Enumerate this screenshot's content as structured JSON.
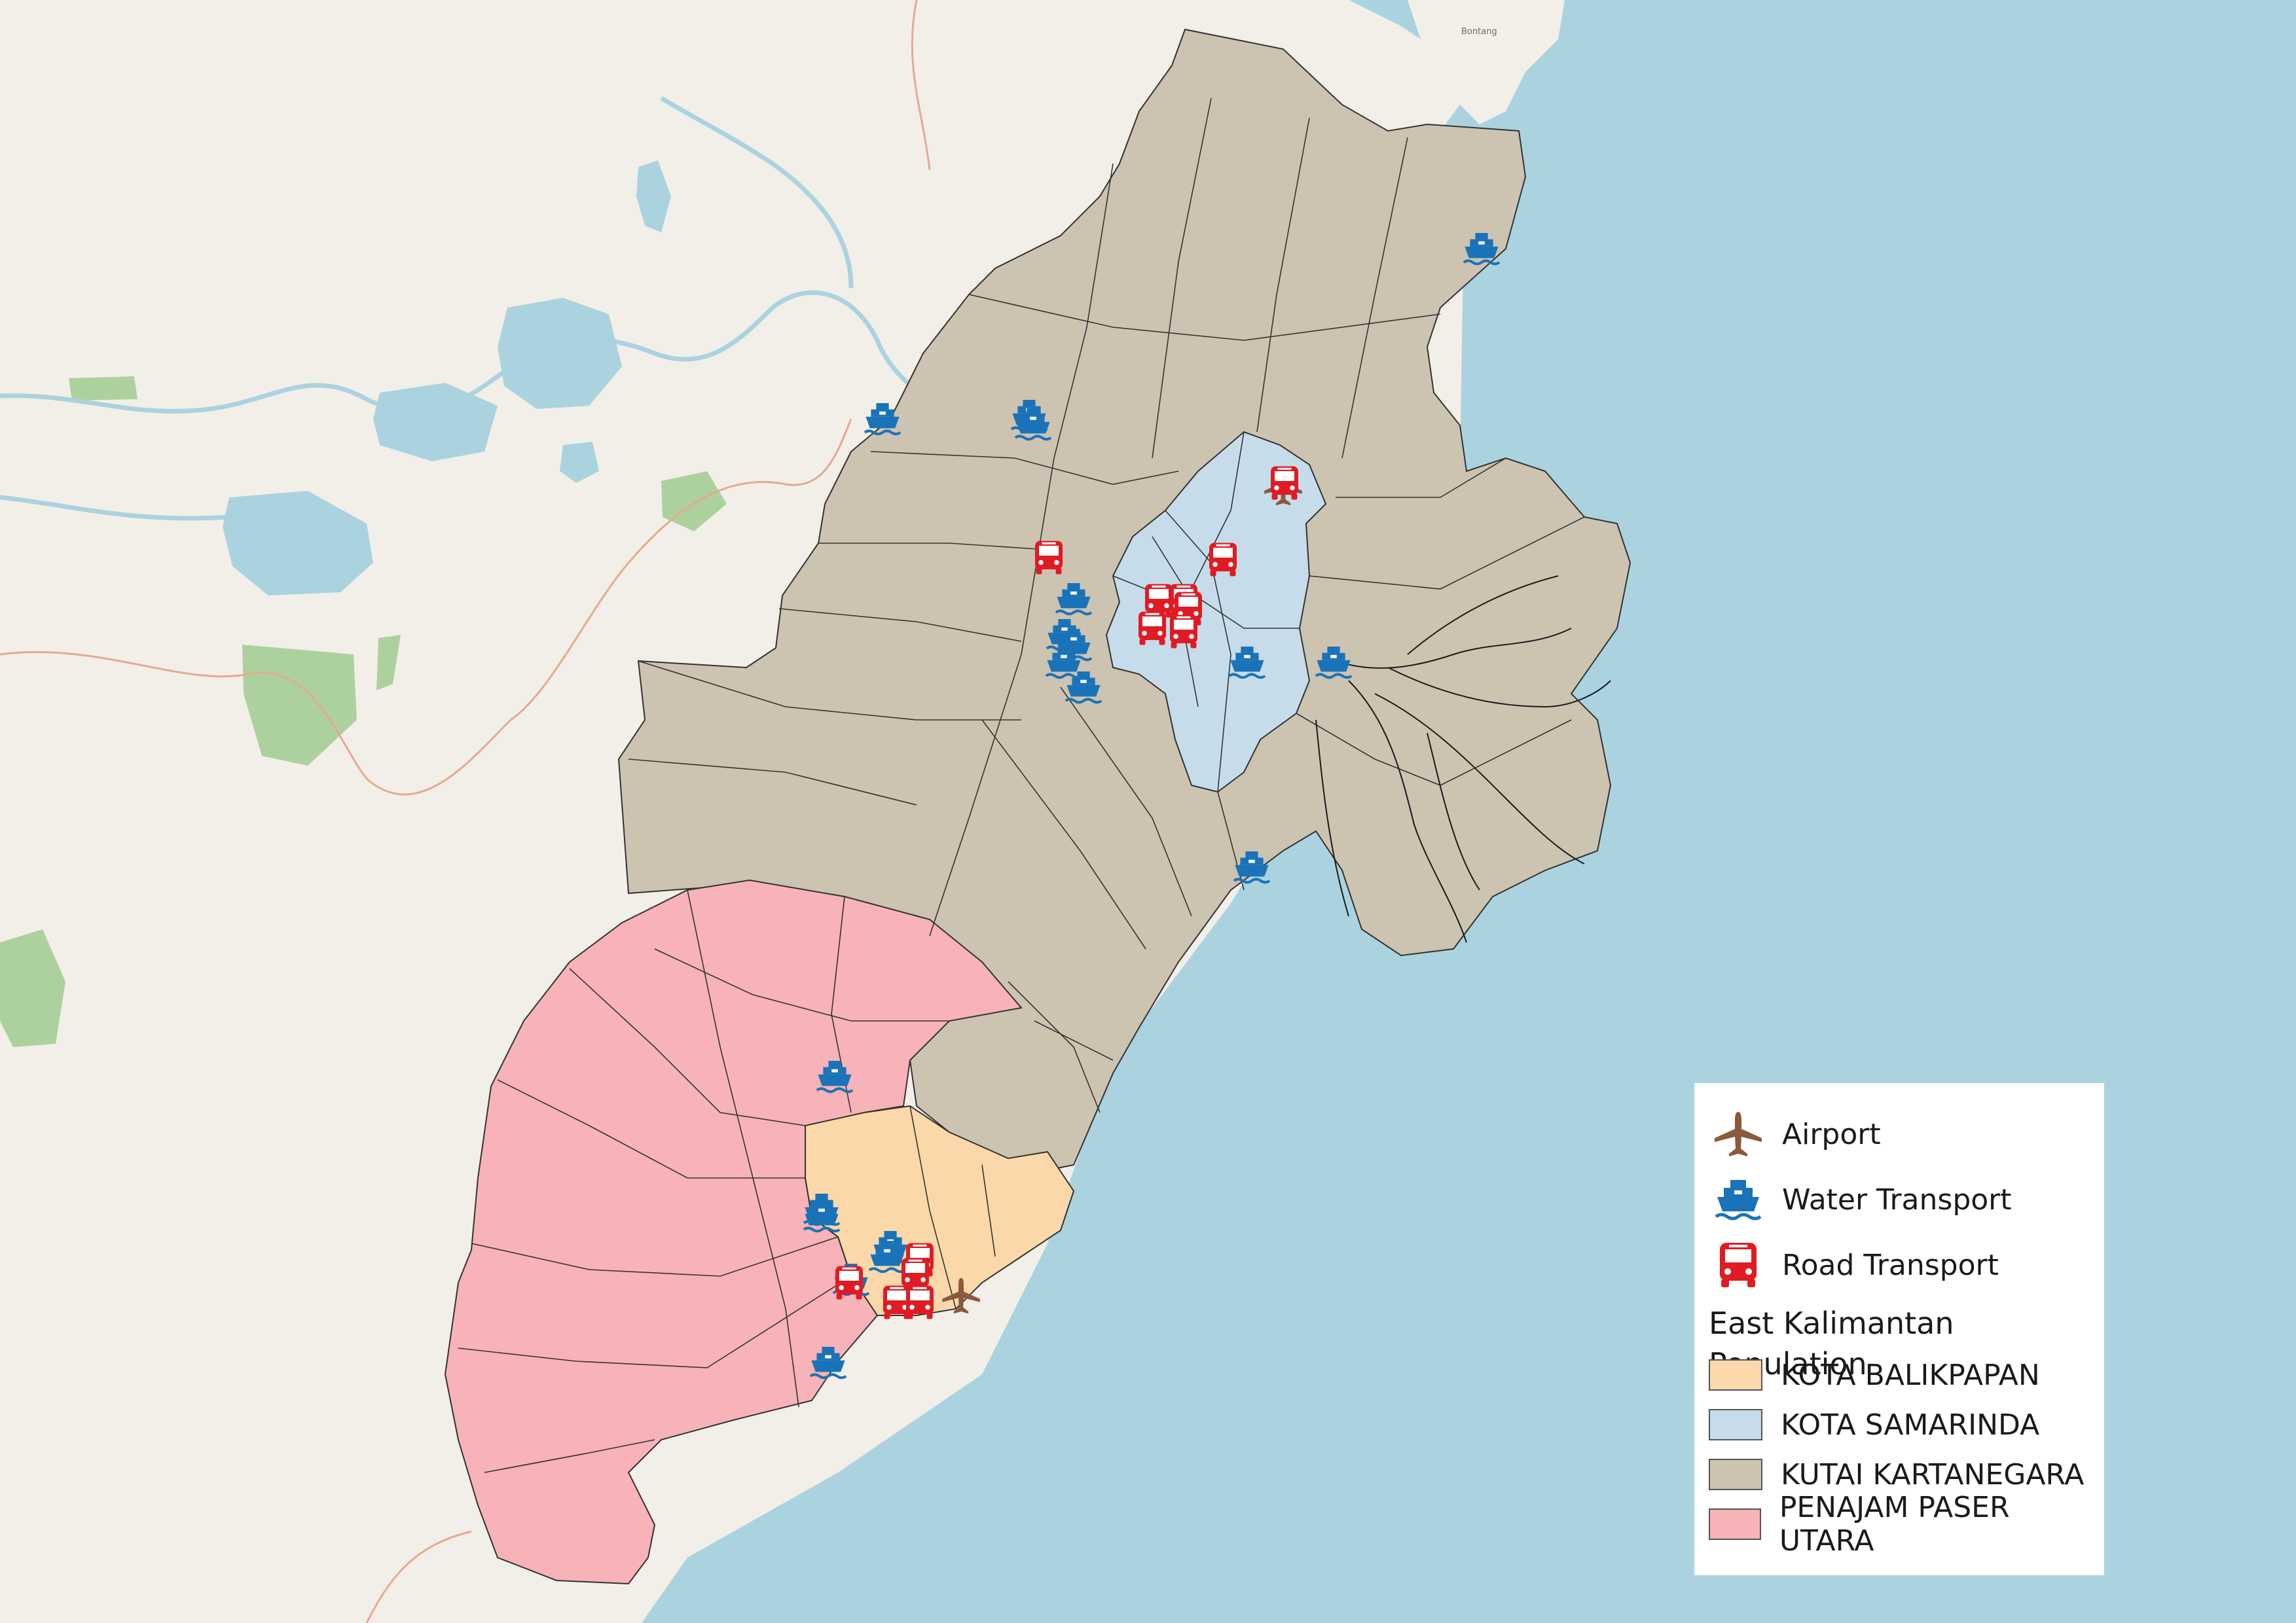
{
  "map": {
    "place_labels": [
      "Bontang"
    ],
    "colors": {
      "sea": "#aad3df",
      "land": "#f2efe9",
      "lake": "#aad3df",
      "forest": "#add19e",
      "kota_balikpapan": "#fbd8a9",
      "kota_samarinda": "#c6dcea",
      "kutai_kartanegara": "#cdc3b1",
      "penajam_paser_utara": "#f7b3b7",
      "boundary": "#333333",
      "airport_icon": "#8b5a3c",
      "water_icon": "#1a73b8",
      "road_icon": "#e01b24"
    },
    "markers": {
      "airport": [
        [
          1960,
          745
        ],
        [
          1468,
          1980
        ]
      ],
      "water": [
        [
          1348,
          640
        ],
        [
          1572,
          635
        ],
        [
          1578,
          648
        ],
        [
          1640,
          915
        ],
        [
          1626,
          970
        ],
        [
          1640,
          985
        ],
        [
          1625,
          1012
        ],
        [
          1655,
          1050
        ],
        [
          1905,
          1012
        ],
        [
          2037,
          1012
        ],
        [
          2263,
          380
        ],
        [
          1912,
          1325
        ],
        [
          1275,
          1645
        ],
        [
          1255,
          1848
        ],
        [
          1255,
          1858
        ],
        [
          1360,
          1905
        ],
        [
          1355,
          1920
        ],
        [
          1300,
          1955
        ],
        [
          1265,
          2082
        ]
      ],
      "road": [
        [
          1602,
          852
        ],
        [
          1962,
          738
        ],
        [
          1868,
          855
        ],
        [
          1770,
          918
        ],
        [
          1808,
          918
        ],
        [
          1760,
          960
        ],
        [
          1815,
          930
        ],
        [
          1808,
          965
        ],
        [
          1405,
          1925
        ],
        [
          1398,
          1948
        ],
        [
          1297,
          1960
        ],
        [
          1370,
          1990
        ],
        [
          1405,
          1990
        ]
      ]
    }
  },
  "legend": {
    "items": [
      {
        "label": "Airport",
        "icon": "airplane-icon"
      },
      {
        "label": "Water Transport",
        "icon": "ship-icon"
      },
      {
        "label": "Road Transport",
        "icon": "bus-icon"
      }
    ],
    "title": "East Kalimantan Population",
    "classes": [
      {
        "label": "KOTA BALIKPAPAN",
        "color": "#fbd8a9"
      },
      {
        "label": "KOTA SAMARINDA",
        "color": "#c6dcea"
      },
      {
        "label": "KUTAI KARTANEGARA",
        "color": "#cdc3b1"
      },
      {
        "label": "PENAJAM PASER UTARA",
        "color": "#f7b3b7"
      }
    ]
  }
}
